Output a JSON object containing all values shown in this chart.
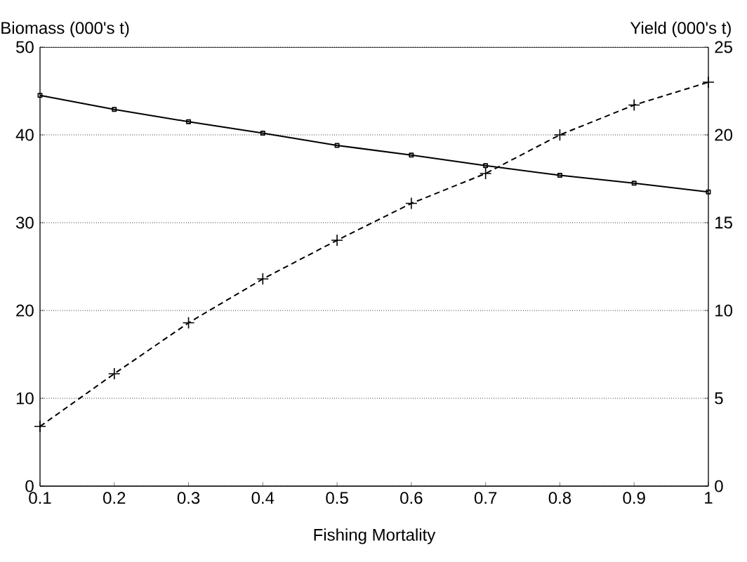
{
  "chart_data": {
    "type": "line",
    "xlabel": "Fishing Mortality",
    "ylabel": "Biomass (000's t)",
    "y2label": "Yield (000's t)",
    "x": [
      0.1,
      0.2,
      0.3,
      0.4,
      0.5,
      0.6,
      0.7,
      0.8,
      0.9,
      1
    ],
    "series": [
      {
        "color": "#000000",
        "marker": "square",
        "line_style": "solid",
        "values": [
          44.5,
          42.9,
          41.5,
          40.2,
          38.8,
          37.7,
          36.5,
          35.4,
          34.5,
          33.5
        ]
      },
      {
        "color": "#000000",
        "marker": "cross",
        "line_style": "dashed",
        "axis": "y2",
        "values": [
          3.4,
          6.4,
          9.3,
          11.8,
          14.0,
          16.1,
          17.8,
          20.0,
          21.7,
          23.0
        ]
      }
    ],
    "xlim": [
      0.1,
      1
    ],
    "xticks": [
      0.1,
      0.2,
      0.3,
      0.4,
      0.5,
      0.6,
      0.7,
      0.8,
      0.9,
      1
    ],
    "ylim": [
      0,
      50
    ],
    "yticks": [
      0,
      10,
      20,
      30,
      40,
      50
    ],
    "y2lim": [
      0,
      25
    ],
    "y2ticks": [
      0,
      5,
      10,
      15,
      20,
      25
    ],
    "grid": "y"
  }
}
